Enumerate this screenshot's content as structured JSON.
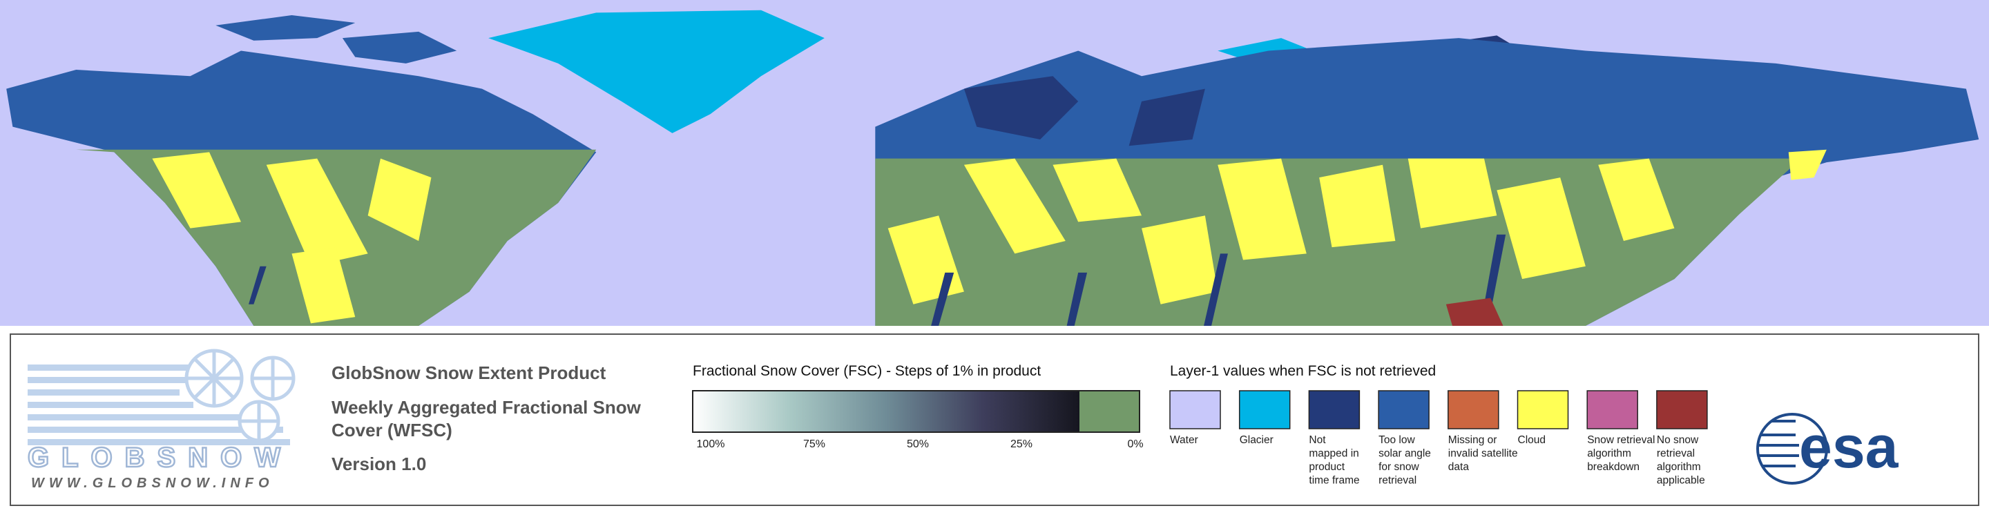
{
  "logo": {
    "name": "GLOBSNOW",
    "url": "WWW.GLOBSNOW.INFO"
  },
  "title": {
    "product": "GlobSnow Snow Extent Product",
    "subtitle_lines": [
      "Weekly Aggregated Fractional Snow",
      "Cover (WFSC)"
    ],
    "version": "Version 1.0"
  },
  "fsc_colorbar": {
    "title": "Fractional Snow Cover (FSC) - Steps of 1% in product",
    "colors": [
      "#ffffff",
      "#a9c9c5",
      "#6f8c97",
      "#3e3e5c",
      "#16161f"
    ],
    "zero_color": "#739a6a",
    "tick_labels": [
      "100%",
      "75%",
      "50%",
      "25%",
      "0%"
    ]
  },
  "layer1_legend": {
    "title": "Layer-1 values when FSC is not retrieved",
    "items": [
      {
        "label": [
          "Water"
        ],
        "color": "#c8c8fa"
      },
      {
        "label": [
          "Glacier"
        ],
        "color": "#00b4e6"
      },
      {
        "label": [
          "Not",
          "mapped in",
          "product",
          "time frame"
        ],
        "color": "#233a7a"
      },
      {
        "label": [
          "Too low",
          "solar angle",
          "for snow",
          "retrieval"
        ],
        "color": "#2b5ea8"
      },
      {
        "label": [
          "Missing or",
          "invalid satellite",
          "data"
        ],
        "color": "#cc6640"
      },
      {
        "label": [
          "Cloud"
        ],
        "color": "#ffff55"
      },
      {
        "label": [
          "Snow retrieval",
          "algorithm",
          "breakdown"
        ],
        "color": "#c0609a"
      },
      {
        "label": [
          "No snow",
          "retrieval",
          "algorithm",
          "applicable"
        ],
        "color": "#993333"
      }
    ]
  },
  "esa_logo": "esa"
}
